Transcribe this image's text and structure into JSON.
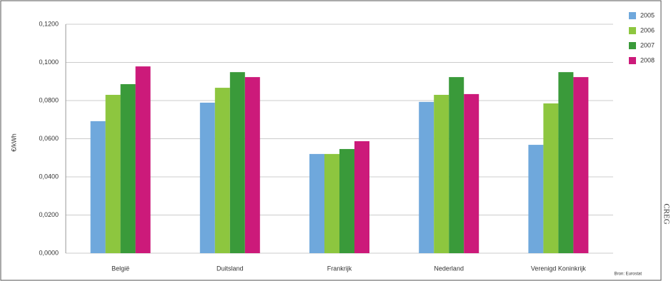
{
  "chart_data": {
    "type": "bar",
    "y_label": "€/kWh",
    "source": "Bron: Eurostat",
    "side_label": "CREG",
    "categories": [
      "België",
      "Duitsland",
      "Frankrijk",
      "Nederland",
      "Verenigd Koninkrijk"
    ],
    "series": [
      {
        "name": "2005",
        "color": "#6fa8dc",
        "values": [
          0.0692,
          0.0789,
          0.052,
          0.0793,
          0.0568
        ]
      },
      {
        "name": "2006",
        "color": "#8dc63f",
        "values": [
          0.083,
          0.0867,
          0.052,
          0.083,
          0.0785
        ]
      },
      {
        "name": "2007",
        "color": "#3a9a3a",
        "values": [
          0.0886,
          0.0949,
          0.0546,
          0.0923,
          0.0949
        ]
      },
      {
        "name": "2008",
        "color": "#cc1a7a",
        "values": [
          0.0979,
          0.0923,
          0.0587,
          0.0834,
          0.0923
        ]
      }
    ],
    "ylim": [
      0,
      0.12
    ],
    "yticks": [
      {
        "value": 0,
        "label": "0,0000"
      },
      {
        "value": 0.02,
        "label": "0,0200"
      },
      {
        "value": 0.04,
        "label": "0,0400"
      },
      {
        "value": 0.06,
        "label": "0,0600"
      },
      {
        "value": 0.08,
        "label": "0,0800"
      },
      {
        "value": 0.1,
        "label": "0,1000"
      },
      {
        "value": 0.12,
        "label": "0,1200"
      }
    ],
    "grid": true
  }
}
